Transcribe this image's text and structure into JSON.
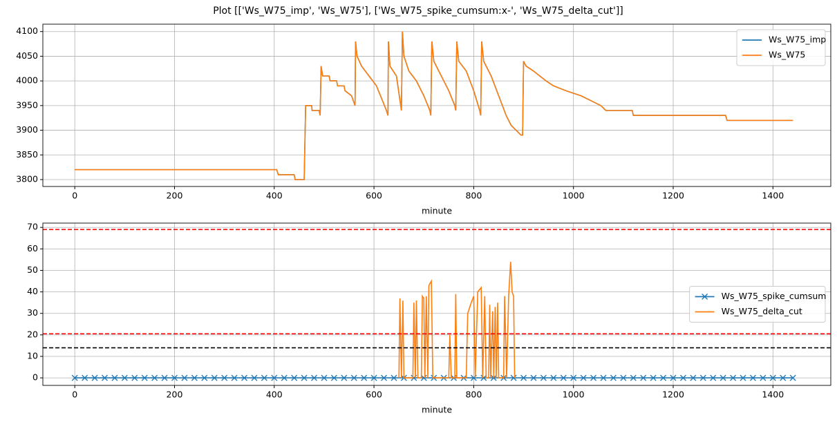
{
  "title": "Plot [['Ws_W75_imp', 'Ws_W75'], ['Ws_W75_spike_cumsum:x-', 'Ws_W75_delta_cut']]",
  "chart_data": [
    {
      "type": "line",
      "xlabel": "minute",
      "xlim": [
        -64,
        1516
      ],
      "ylim": [
        3786,
        4115
      ],
      "xticks": [
        0,
        200,
        400,
        600,
        800,
        1000,
        1200,
        1400
      ],
      "yticks": [
        3800,
        3850,
        3900,
        3950,
        4000,
        4050,
        4100
      ],
      "grid": true,
      "legend": "upper right",
      "series": [
        {
          "name": "Ws_W75_imp",
          "color": "#1f77b4",
          "x": [
            0,
            405,
            408,
            440,
            442,
            460,
            463,
            475,
            476,
            490,
            492,
            494,
            497,
            510,
            512,
            525,
            527,
            540,
            542,
            555,
            562,
            563,
            566,
            575,
            590,
            605,
            615,
            625,
            628,
            629,
            632,
            645,
            655,
            657,
            660,
            670,
            685,
            700,
            712,
            714,
            716,
            720,
            735,
            750,
            762,
            764,
            766,
            770,
            785,
            800,
            812,
            814,
            816,
            820,
            835,
            850,
            865,
            875,
            885,
            895,
            898,
            900,
            905,
            920,
            945,
            960,
            985,
            1015,
            1035,
            1055,
            1065,
            1118,
            1120,
            1305,
            1308,
            1440
          ],
          "values": [
            3820,
            3820,
            3810,
            3810,
            3800,
            3800,
            3950,
            3950,
            3940,
            3940,
            3930,
            4030,
            4010,
            4010,
            4000,
            4000,
            3990,
            3990,
            3980,
            3970,
            3950,
            4080,
            4050,
            4030,
            4010,
            3990,
            3965,
            3940,
            3930,
            4080,
            4030,
            4010,
            3940,
            4100,
            4050,
            4020,
            4000,
            3970,
            3940,
            3930,
            4080,
            4040,
            4010,
            3980,
            3950,
            3940,
            4080,
            4040,
            4020,
            3980,
            3940,
            3930,
            4080,
            4040,
            4010,
            3970,
            3930,
            3910,
            3900,
            3890,
            3890,
            4040,
            4030,
            4020,
            4000,
            3990,
            3980,
            3970,
            3960,
            3950,
            3940,
            3940,
            3930,
            3930,
            3920,
            3920
          ]
        },
        {
          "name": "Ws_W75",
          "color": "#ff7f0e",
          "x": [
            0,
            405,
            408,
            440,
            442,
            460,
            463,
            475,
            476,
            490,
            492,
            494,
            497,
            510,
            512,
            525,
            527,
            540,
            542,
            555,
            562,
            563,
            566,
            575,
            590,
            605,
            615,
            625,
            628,
            629,
            632,
            645,
            655,
            657,
            660,
            670,
            685,
            700,
            712,
            714,
            716,
            720,
            735,
            750,
            762,
            764,
            766,
            770,
            785,
            800,
            812,
            814,
            816,
            820,
            835,
            850,
            865,
            875,
            885,
            895,
            898,
            900,
            905,
            920,
            945,
            960,
            985,
            1015,
            1035,
            1055,
            1065,
            1118,
            1120,
            1305,
            1308,
            1440
          ],
          "values": [
            3820,
            3820,
            3810,
            3810,
            3800,
            3800,
            3950,
            3950,
            3940,
            3940,
            3930,
            4030,
            4010,
            4010,
            4000,
            4000,
            3990,
            3990,
            3980,
            3970,
            3950,
            4080,
            4050,
            4030,
            4010,
            3990,
            3965,
            3940,
            3930,
            4080,
            4030,
            4010,
            3940,
            4100,
            4050,
            4020,
            4000,
            3970,
            3940,
            3930,
            4080,
            4040,
            4010,
            3980,
            3950,
            3940,
            4080,
            4040,
            4020,
            3980,
            3940,
            3930,
            4080,
            4040,
            4010,
            3970,
            3930,
            3910,
            3900,
            3890,
            3890,
            4040,
            4030,
            4020,
            4000,
            3990,
            3980,
            3970,
            3960,
            3950,
            3940,
            3940,
            3930,
            3930,
            3920,
            3920
          ]
        }
      ]
    },
    {
      "type": "line",
      "xlabel": "minute",
      "xlim": [
        -64,
        1516
      ],
      "ylim": [
        -3.5,
        72
      ],
      "xticks": [
        0,
        200,
        400,
        600,
        800,
        1000,
        1200,
        1400
      ],
      "yticks": [
        0,
        10,
        20,
        30,
        40,
        50,
        60,
        70
      ],
      "grid": true,
      "legend": "center right",
      "hlines": [
        {
          "value": 69,
          "color": "#ff0000"
        },
        {
          "value": 20.5,
          "color": "#ff0000"
        },
        {
          "value": 14,
          "color": "#000000"
        }
      ],
      "series": [
        {
          "name": "Ws_W75_spike_cumsum",
          "color": "#1f77b4",
          "marker": "x",
          "x": [
            0,
            20,
            40,
            60,
            80,
            100,
            120,
            140,
            160,
            180,
            200,
            220,
            240,
            260,
            280,
            300,
            320,
            340,
            360,
            380,
            400,
            420,
            440,
            460,
            480,
            500,
            520,
            540,
            560,
            580,
            600,
            620,
            640,
            660,
            680,
            700,
            720,
            740,
            760,
            780,
            800,
            820,
            840,
            860,
            880,
            900,
            920,
            940,
            960,
            980,
            1000,
            1020,
            1040,
            1060,
            1080,
            1100,
            1120,
            1140,
            1160,
            1180,
            1200,
            1220,
            1240,
            1260,
            1280,
            1300,
            1320,
            1340,
            1360,
            1380,
            1400,
            1420,
            1440
          ],
          "values": [
            0,
            0,
            0,
            0,
            0,
            0,
            0,
            0,
            0,
            0,
            0,
            0,
            0,
            0,
            0,
            0,
            0,
            0,
            0,
            0,
            0,
            0,
            0,
            0,
            0,
            0,
            0,
            0,
            0,
            0,
            0,
            0,
            0,
            0,
            0,
            0,
            0,
            0,
            0,
            0,
            0,
            0,
            0,
            0,
            0,
            0,
            0,
            0,
            0,
            0,
            0,
            0,
            0,
            0,
            0,
            0,
            0,
            0,
            0,
            0,
            0,
            0,
            0,
            0,
            0,
            0,
            0,
            0,
            0,
            0,
            0,
            0,
            0
          ]
        },
        {
          "name": "Ws_W75_delta_cut",
          "color": "#ff7f0e",
          "x": [
            650,
            652,
            655,
            658,
            660,
            678,
            680,
            683,
            685,
            688,
            695,
            697,
            700,
            702,
            705,
            708,
            710,
            715,
            718,
            750,
            752,
            755,
            762,
            764,
            766,
            785,
            788,
            795,
            800,
            803,
            808,
            815,
            818,
            822,
            825,
            830,
            832,
            834,
            838,
            840,
            843,
            845,
            848,
            850,
            860,
            862,
            866,
            870,
            874,
            877,
            880,
            882
          ],
          "values": [
            0,
            37,
            0,
            36,
            0,
            0,
            35,
            0,
            36,
            0,
            0,
            38,
            37,
            0,
            38,
            0,
            43,
            45,
            0,
            0,
            20,
            0,
            0,
            39,
            0,
            0,
            30,
            35,
            38,
            0,
            40,
            42,
            0,
            38,
            0,
            0,
            34,
            0,
            31,
            0,
            33,
            0,
            35,
            0,
            0,
            38,
            0,
            38,
            54,
            40,
            38,
            0
          ]
        }
      ]
    }
  ]
}
